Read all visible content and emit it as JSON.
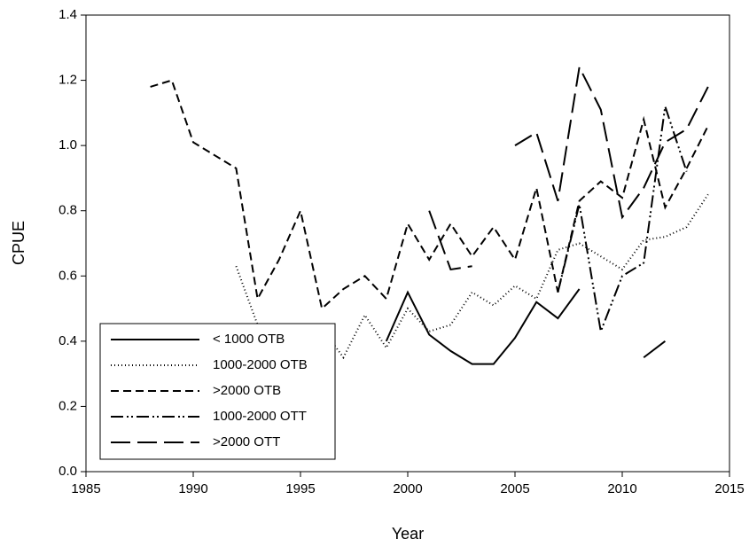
{
  "chart_data": {
    "type": "line",
    "x_label": "Year",
    "y_label": "CPUE",
    "x": [
      1988,
      1989,
      1990,
      1991,
      1992,
      1993,
      1994,
      1995,
      1996,
      1997,
      1998,
      1999,
      2000,
      2001,
      2002,
      2003,
      2004,
      2005,
      2006,
      2007,
      2008,
      2009,
      2010,
      2011,
      2012,
      2013,
      2014
    ],
    "series": [
      {
        "name": "< 1000 OTB",
        "color": "#000000",
        "dash": "none",
        "values": [
          null,
          null,
          null,
          null,
          null,
          null,
          null,
          null,
          null,
          null,
          null,
          0.4,
          0.55,
          0.42,
          0.37,
          0.33,
          0.33,
          0.41,
          0.52,
          0.47,
          0.56,
          null,
          null,
          0.35,
          0.4,
          null,
          null
        ]
      },
      {
        "name": "1000-2000 OTB",
        "color": "#000000",
        "dash": "1,3",
        "values": [
          null,
          null,
          null,
          null,
          0.63,
          0.45,
          0.4,
          0.42,
          0.44,
          0.35,
          0.48,
          0.38,
          0.5,
          0.43,
          0.45,
          0.55,
          0.51,
          0.57,
          0.53,
          0.68,
          0.7,
          0.66,
          0.62,
          0.71,
          0.72,
          0.75,
          0.85
        ]
      },
      {
        "name": ">2000 OTB",
        "color": "#000000",
        "dash": "9,5",
        "values": [
          1.18,
          1.2,
          1.01,
          0.97,
          0.93,
          0.53,
          0.65,
          0.8,
          0.5,
          0.56,
          0.6,
          0.53,
          0.76,
          0.65,
          0.76,
          0.66,
          0.75,
          0.65,
          0.87,
          0.55,
          0.83,
          0.89,
          0.84,
          1.08,
          0.81,
          0.93,
          1.06
        ]
      },
      {
        "name": "1000-2000 OTT",
        "color": "#000000",
        "dash": "14,4,2,3,2,4",
        "values": [
          null,
          null,
          null,
          null,
          null,
          null,
          null,
          null,
          null,
          null,
          null,
          null,
          null,
          null,
          null,
          null,
          null,
          null,
          null,
          0.55,
          0.82,
          0.43,
          0.6,
          0.64,
          1.12,
          0.92,
          null
        ]
      },
      {
        "name": ">2000 OTT",
        "color": "#000000",
        "dash": "22,8",
        "values": [
          null,
          null,
          null,
          null,
          null,
          null,
          null,
          null,
          null,
          null,
          null,
          null,
          null,
          0.8,
          0.62,
          0.63,
          null,
          1.0,
          1.04,
          0.83,
          1.24,
          1.11,
          0.78,
          0.87,
          1.01,
          1.05,
          1.18
        ]
      }
    ],
    "xlim": [
      1985,
      2015
    ],
    "xticks": [
      1985,
      1990,
      1995,
      2000,
      2005,
      2010,
      2015
    ],
    "ylim": [
      0,
      1.4
    ],
    "yticks": [
      {
        "value": 0,
        "label": "0.0"
      },
      {
        "value": 0.2,
        "label": "0.2"
      },
      {
        "value": 0.4,
        "label": "0.4"
      },
      {
        "value": 0.6,
        "label": "0.6"
      },
      {
        "value": 0.8,
        "label": "0.8"
      },
      {
        "value": 1,
        "label": "1.0"
      },
      {
        "value": 1.2,
        "label": "1.2"
      },
      {
        "value": 1.4,
        "label": "1.4"
      }
    ],
    "grid": false,
    "legend": "lower left"
  }
}
